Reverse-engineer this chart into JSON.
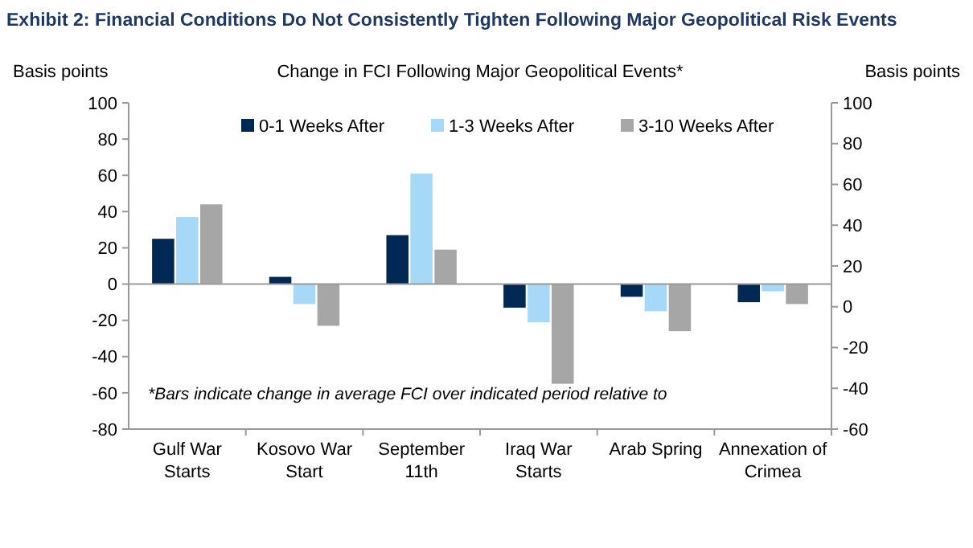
{
  "chart_data": {
    "type": "bar",
    "title": "Exhibit 2: Financial Conditions Do Not Consistently Tighten Following Major Geopolitical Risk Events",
    "subtitle": "Change in FCI Following Major Geopolitical Events*",
    "ylabel": "Basis points",
    "y2label": "Basis points",
    "categories": [
      "Gulf War Starts",
      "Kosovo War Start",
      "September 11th",
      "Iraq War Starts",
      "Arab Spring",
      "Annexation of Crimea"
    ],
    "series": [
      {
        "name": "0-1 Weeks After",
        "color": "#002855",
        "values": [
          25,
          4,
          27,
          -13,
          -7,
          -10
        ]
      },
      {
        "name": "1-3 Weeks After",
        "color": "#a6d8f7",
        "values": [
          37,
          -11,
          61,
          -21,
          -15,
          -4
        ]
      },
      {
        "name": "3-10 Weeks After",
        "color": "#a6a6a6",
        "values": [
          44,
          -23,
          19,
          -55,
          -26,
          -11
        ]
      }
    ],
    "ylim": [
      -80,
      100
    ],
    "yticks": [
      -80,
      -60,
      -40,
      -20,
      0,
      20,
      40,
      60,
      80,
      100
    ],
    "y2lim": [
      -60,
      100
    ],
    "y2ticks": [
      -60,
      -40,
      -20,
      0,
      20,
      40,
      60,
      80,
      100
    ],
    "annotations": [
      "*Bars indicate change in average FCI over indicated period relative to"
    ],
    "legend": "top"
  }
}
